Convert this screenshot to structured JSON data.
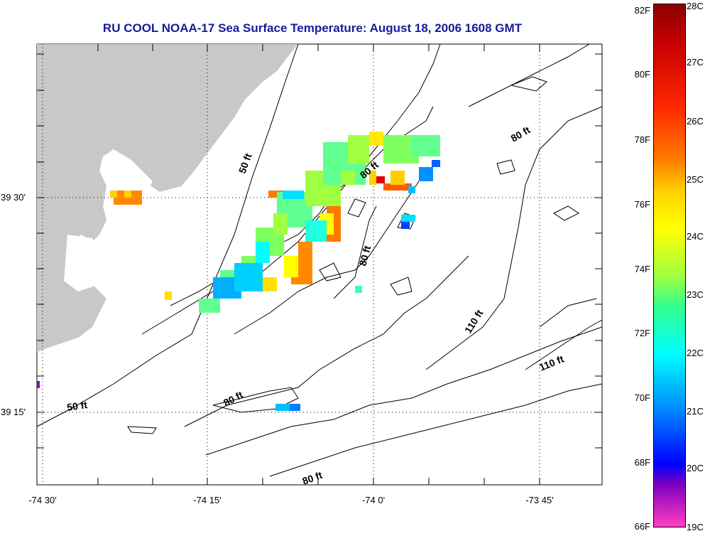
{
  "title": "RU COOL  NOAA-17  Sea Surface Temperature:  August 18, 2006 1608 GMT",
  "y_ticks": [
    "39 30'",
    "39 15'"
  ],
  "x_ticks": [
    "-74 30'",
    "-74 15'",
    "-74 0'",
    "-73 45'"
  ],
  "contour_labels": [
    "50 ft",
    "80 ft",
    "80 ft",
    "80 ft",
    "110 ft",
    "110 ft",
    "80 ft",
    "50 ft",
    "80 ft"
  ],
  "colorbar": {
    "fahrenheit": [
      "82F",
      "80F",
      "78F",
      "76F",
      "74F",
      "72F",
      "70F",
      "68F",
      "66F"
    ],
    "celsius": [
      "28C",
      "27C",
      "26C",
      "25C",
      "24C",
      "23C",
      "22C",
      "21C",
      "20C",
      "19C"
    ]
  },
  "colors": {
    "land": "#c8c8c8",
    "title": "#1a1a9a"
  }
}
